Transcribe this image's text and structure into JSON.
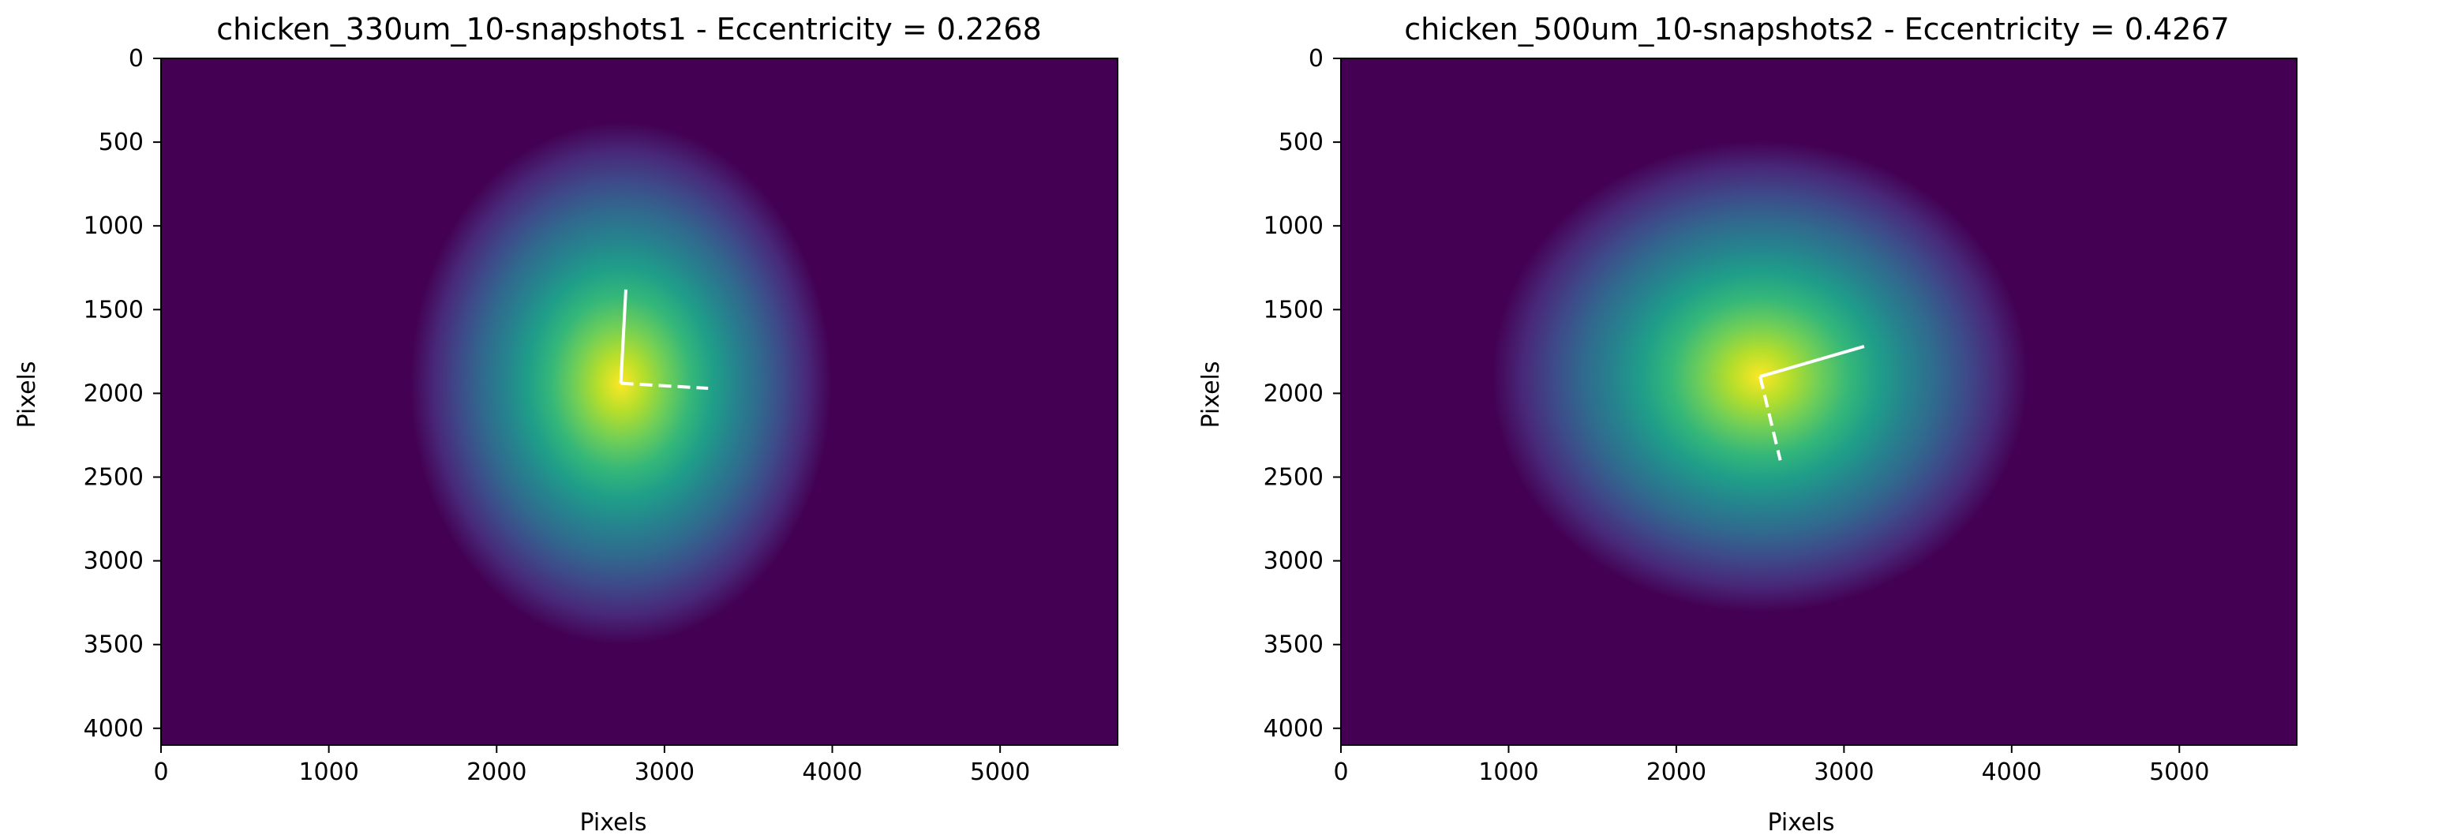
{
  "colors": {
    "background_low": "#440154",
    "peak": "#fde725",
    "axis_lines": "#ffffff"
  },
  "chart_data": [
    {
      "type": "heatmap",
      "title": "chicken_330um_10-snapshots1 - Eccentricity = 0.2268",
      "xlabel": "Pixels",
      "ylabel": "Pixels",
      "xlim": [
        0,
        5700
      ],
      "ylim": [
        4100,
        0
      ],
      "xticks": [
        0,
        1000,
        2000,
        3000,
        4000,
        5000
      ],
      "yticks": [
        0,
        500,
        1000,
        1500,
        2000,
        2500,
        3000,
        3500,
        4000
      ],
      "colormap": "viridis",
      "grid": false,
      "center": [
        2740,
        1940
      ],
      "sigma": [
        660,
        820
      ],
      "major_axis": [
        [
          2740,
          1940
        ],
        [
          2770,
          1380
        ]
      ],
      "minor_axis_dashed": [
        [
          2740,
          1940
        ],
        [
          3260,
          1970
        ]
      ]
    },
    {
      "type": "heatmap",
      "title": "chicken_500um_10-snapshots2 - Eccentricity = 0.4267",
      "xlabel": "Pixels",
      "ylabel": "Pixels",
      "xlim": [
        0,
        5700
      ],
      "ylim": [
        4100,
        0
      ],
      "xticks": [
        0,
        1000,
        2000,
        3000,
        4000,
        5000
      ],
      "yticks": [
        0,
        500,
        1000,
        1500,
        2000,
        2500,
        3000,
        3500,
        4000
      ],
      "colormap": "viridis",
      "grid": false,
      "center": [
        2500,
        1900
      ],
      "sigma": [
        840,
        740
      ],
      "major_axis": [
        [
          2500,
          1900
        ],
        [
          3120,
          1720
        ]
      ],
      "minor_axis_dashed": [
        [
          2500,
          1900
        ],
        [
          2620,
          2400
        ]
      ]
    }
  ]
}
